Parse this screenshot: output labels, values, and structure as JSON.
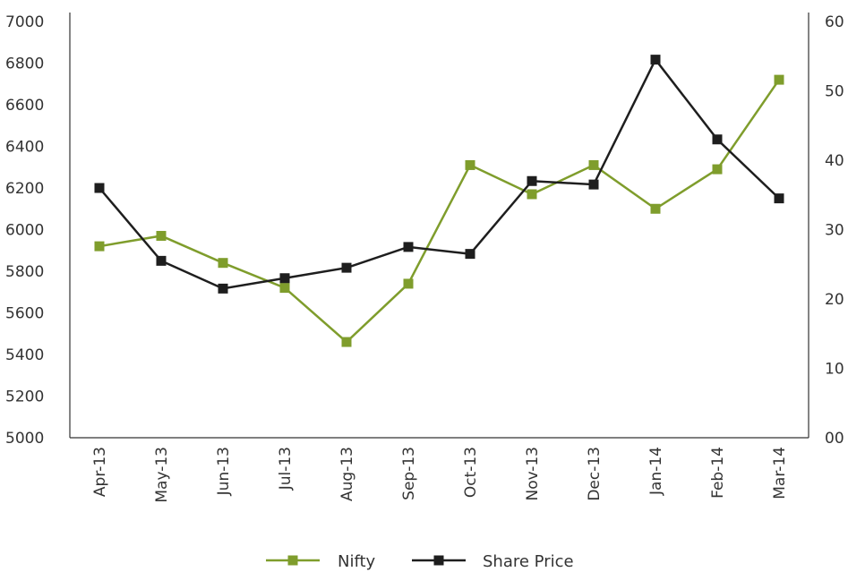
{
  "chart_data": {
    "type": "line",
    "categories": [
      "Apr-13",
      "May-13",
      "Jun-13",
      "Jul-13",
      "Aug-13",
      "Sep-13",
      "Oct-13",
      "Nov-13",
      "Dec-13",
      "Jan-14",
      "Feb-14",
      "Mar-14"
    ],
    "series": [
      {
        "name": "Nifty",
        "axis": "left",
        "color": "#7f9d2c",
        "values": [
          5920,
          5970,
          5840,
          5720,
          5460,
          5740,
          6310,
          6170,
          6310,
          6100,
          6290,
          6720
        ]
      },
      {
        "name": "Share Price",
        "axis": "right",
        "color": "#1e1e1e",
        "values": [
          36,
          25.5,
          21.5,
          23,
          24.5,
          27.5,
          26.5,
          37,
          36.5,
          54.5,
          43,
          34.5
        ]
      }
    ],
    "y_left": {
      "min": 5000,
      "max": 7000,
      "ticks": [
        "5000",
        "5200",
        "5400",
        "5600",
        "5800",
        "6000",
        "6200",
        "6400",
        "6600",
        "6800",
        "7000"
      ]
    },
    "y_right": {
      "min": 0,
      "max": 60,
      "ticks": [
        "00",
        "10",
        "20",
        "30",
        "40",
        "50",
        "60"
      ]
    },
    "grid": false,
    "legend": "bottom"
  }
}
